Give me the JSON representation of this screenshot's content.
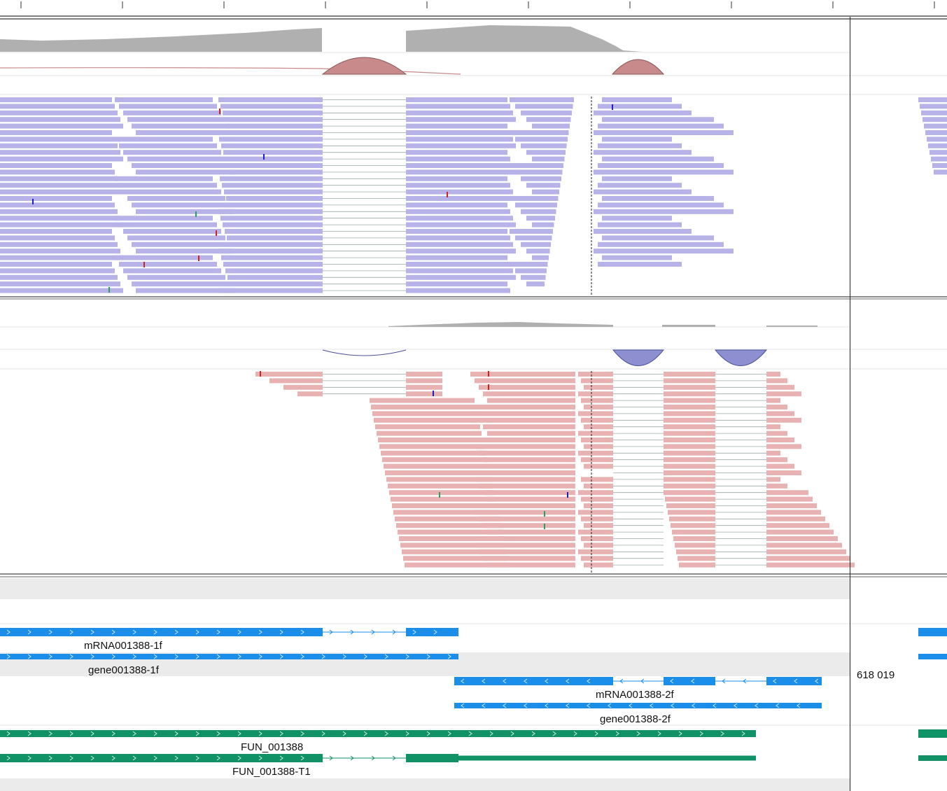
{
  "ruler": {
    "tick_count": 10
  },
  "position_readout": "618 019",
  "colors": {
    "coverage": "#b0b0b0",
    "forward_reads": "#b7b3e8",
    "reverse_reads": "#e8b2b2",
    "junction_forward": "#c88a8a",
    "junction_reverse": "#8e8fd0",
    "gene_blue": "#1a8ee8",
    "gene_green": "#119166",
    "mismatch_red": "#d02020",
    "mismatch_green": "#2aa060",
    "mismatch_blue": "#2020c0"
  },
  "features": {
    "mrna_1f": "mRNA001388-1f",
    "gene_1f": "gene001388-1f",
    "mrna_2f": "mRNA001388-2f",
    "gene_2f": "gene001388-2f",
    "fun": "FUN_001388",
    "fun_t1": "FUN_001388-T1"
  }
}
